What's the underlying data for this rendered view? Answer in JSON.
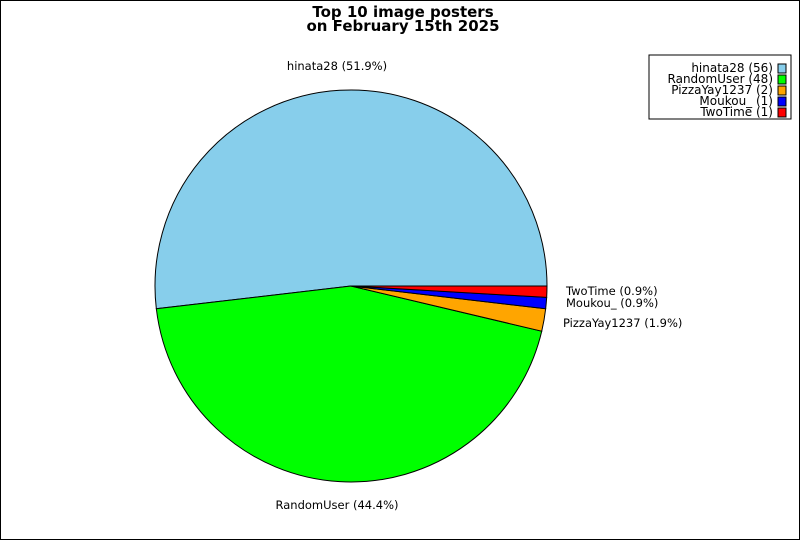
{
  "chart_data": {
    "type": "pie",
    "title": [
      "Top 10 image posters",
      "on February 15th 2025"
    ],
    "series": [
      {
        "name": "hinata28",
        "value": 56,
        "percent_label": "hinata28 (51.9%)",
        "legend_label": "hinata28 (56)",
        "color": "#87CEEB"
      },
      {
        "name": "RandomUser",
        "value": 48,
        "percent_label": "RandomUser (44.4%)",
        "legend_label": "RandomUser (48)",
        "color": "#00FF00"
      },
      {
        "name": "PizzaYay1237",
        "value": 2,
        "percent_label": "PizzaYay1237 (1.9%)",
        "legend_label": "PizzaYay1237 (2)",
        "color": "#FFA500"
      },
      {
        "name": "Moukou_",
        "value": 1,
        "percent_label": "Moukou_ (0.9%)",
        "legend_label": "Moukou_ (1)",
        "color": "#0000FF"
      },
      {
        "name": "TwoTime",
        "value": 1,
        "percent_label": "TwoTime (0.9%)",
        "legend_label": "TwoTime (1)",
        "color": "#FF0000"
      }
    ],
    "legend_position": "top-right",
    "start_angle_deg": 0,
    "direction": "counterclockwise"
  }
}
